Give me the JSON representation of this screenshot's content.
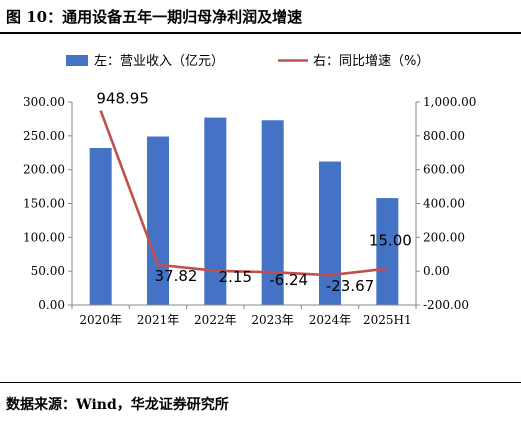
{
  "figure_title": "图 10：通用设备五年一期归母净利润及增速",
  "source": "数据来源：Wind，华龙证券研究所",
  "chart_data": {
    "type": "bar",
    "categories": [
      "2020年",
      "2021年",
      "2022年",
      "2023年",
      "2024年",
      "2025H1"
    ],
    "series": [
      {
        "name": "左：营业收入（亿元）",
        "type": "bar",
        "axis": "left",
        "color": "#4472C4",
        "values": [
          232,
          249,
          277,
          273,
          212,
          158
        ]
      },
      {
        "name": "右：同比增速（%）",
        "type": "line",
        "axis": "right",
        "color": "#C0504D",
        "values": [
          948.95,
          37.82,
          2.15,
          -6.24,
          -23.67,
          15.0
        ]
      }
    ],
    "data_labels": [
      "948.95",
      "37.82",
      "2.15",
      "-6.24",
      "-23.67",
      "15.00"
    ],
    "left_axis": {
      "min": 0,
      "max": 300,
      "step": 50,
      "tick_labels": [
        "0.00",
        "50.00",
        "100.00",
        "150.00",
        "200.00",
        "250.00",
        "300.00"
      ]
    },
    "right_axis": {
      "min": -200,
      "max": 1000,
      "step": 200,
      "tick_labels": [
        "-200.00",
        "0.00",
        "200.00",
        "400.00",
        "600.00",
        "800.00",
        "1,000.00"
      ]
    },
    "legend_position": "top",
    "grid": false
  }
}
